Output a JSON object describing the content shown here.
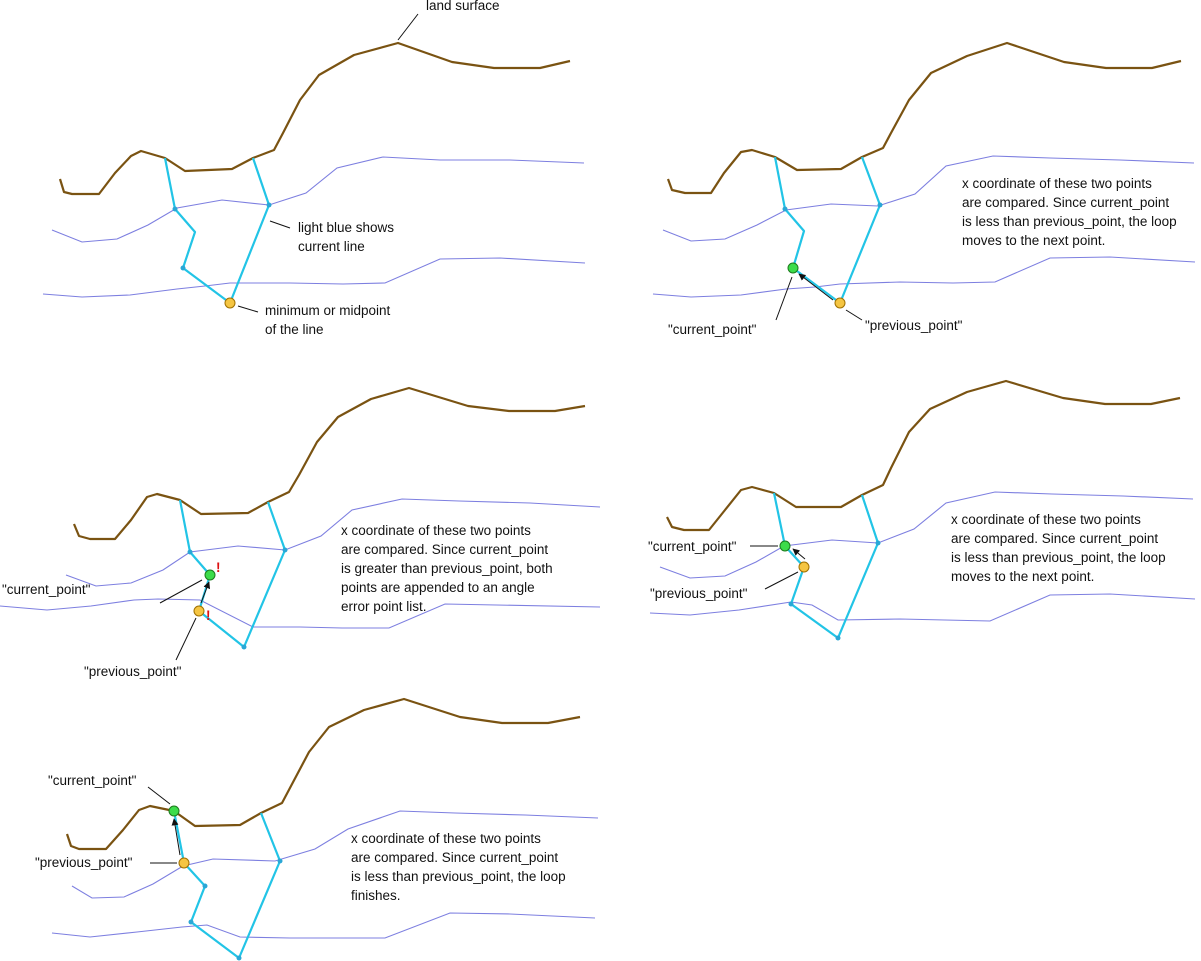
{
  "colors": {
    "land_surface": "#7a5312",
    "contour": "#7d7fe0",
    "current_line": "#22c4e6",
    "current_point": "#3ddc4a",
    "previous_point": "#f5c542",
    "warning": "#dd1111"
  },
  "panel1": {
    "land_label": "land surface",
    "line_label": [
      "light blue shows",
      "current line"
    ],
    "point_label": [
      "minimum or midpoint",
      "of the line"
    ]
  },
  "panel2": {
    "note": [
      "x coordinate of these two points",
      "are compared. Since current_point",
      "is less than previous_point, the loop",
      "moves to the next point."
    ],
    "current_label": "\"current_point\"",
    "previous_label": "\"previous_point\""
  },
  "panel3": {
    "note": [
      "x coordinate of these two points",
      "are compared. Since current_point",
      "is greater than previous_point, both",
      "points are appended to an angle",
      "error point list."
    ],
    "current_label": "\"current_point\"",
    "previous_label": "\"previous_point\"",
    "warning_mark": "!"
  },
  "panel4": {
    "note": [
      "x coordinate of these two points",
      "are compared. Since current_point",
      "is less than previous_point, the loop",
      "moves to the next point."
    ],
    "current_label": "\"current_point\"",
    "previous_label": "\"previous_point\""
  },
  "panel5": {
    "note": [
      "x coordinate of these two points",
      "are compared. Since current_point",
      "is less than previous_point, the loop",
      "finishes."
    ],
    "current_label": "\"current_point\"",
    "previous_label": "\"previous_point\""
  }
}
